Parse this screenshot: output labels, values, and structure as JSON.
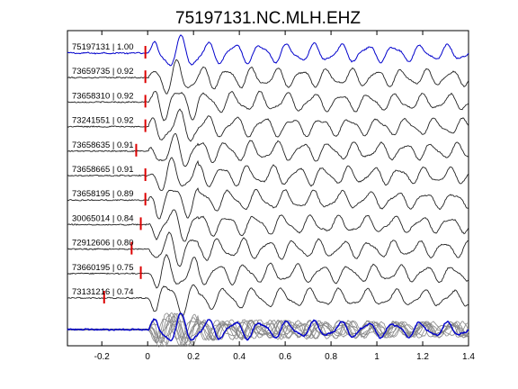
{
  "chart_data": {
    "type": "line",
    "title": "75197131.NC.MLH.EHZ",
    "xlabel": "",
    "ylabel": "",
    "xlim": [
      -0.35,
      1.4
    ],
    "xticks": [
      -0.2,
      0,
      0.2,
      0.4,
      0.6,
      0.8,
      1,
      1.2,
      1.4
    ],
    "xtick_labels": [
      "-0.2",
      "0",
      "0.2",
      "0.4",
      "0.6",
      "0.8",
      "1",
      "1.2",
      "1.4"
    ],
    "grid": false,
    "colors": {
      "reference": "#0000cc",
      "trace": "#222222",
      "stack": "#888888",
      "pick": "#dd0000"
    },
    "traces": [
      {
        "label": "75197131 | 1.00",
        "pick": -0.01,
        "reference": true
      },
      {
        "label": "73659735 | 0.92",
        "pick": -0.01
      },
      {
        "label": "73658310 | 0.92",
        "pick": -0.01
      },
      {
        "label": "73241551 | 0.92",
        "pick": -0.01
      },
      {
        "label": "73658635 | 0.91",
        "pick": -0.05
      },
      {
        "label": "73658665 | 0.91",
        "pick": -0.01
      },
      {
        "label": "73658195 | 0.89",
        "pick": -0.01
      },
      {
        "label": "30065014 | 0.84",
        "pick": -0.03
      },
      {
        "label": "72912606 | 0.80",
        "pick": -0.07
      },
      {
        "label": "73660195 | 0.75",
        "pick": -0.03
      },
      {
        "label": "73131216 | 0.74",
        "pick": -0.19
      }
    ]
  }
}
